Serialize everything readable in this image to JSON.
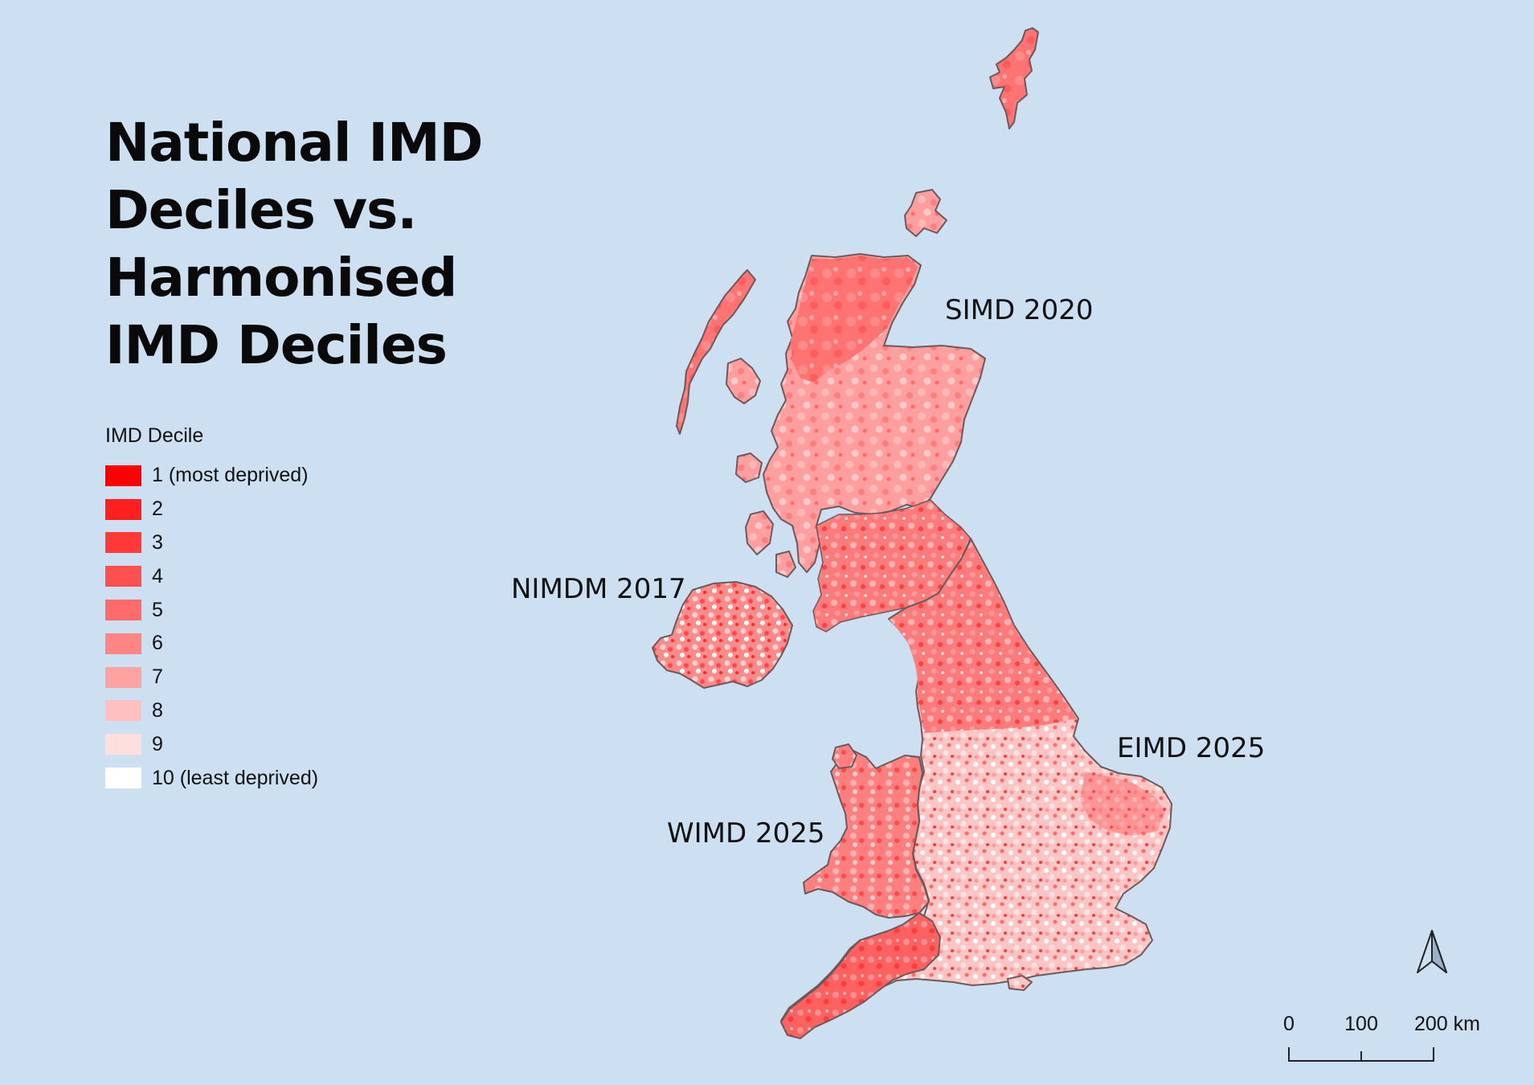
{
  "title_lines": [
    "National IMD",
    "Deciles vs.",
    "Harmonised",
    "IMD Deciles"
  ],
  "legend": {
    "title": "IMD Decile",
    "items": [
      {
        "label": "1 (most deprived)",
        "color": "#ff0000"
      },
      {
        "label": "2",
        "color": "#ff1f1f"
      },
      {
        "label": "3",
        "color": "#ff3838"
      },
      {
        "label": "4",
        "color": "#ff5050"
      },
      {
        "label": "5",
        "color": "#ff6a6a"
      },
      {
        "label": "6",
        "color": "#ff8585"
      },
      {
        "label": "7",
        "color": "#ffa2a2"
      },
      {
        "label": "8",
        "color": "#ffc0c0"
      },
      {
        "label": "9",
        "color": "#ffdede"
      },
      {
        "label": "10 (least deprived)",
        "color": "#ffffff"
      }
    ]
  },
  "regions": {
    "scotland": "SIMD 2020",
    "northern_ireland": "NIMDM 2017",
    "england": "EIMD 2025",
    "wales": "WIMD 2025"
  },
  "scale_bar": {
    "labels": [
      "0",
      "100",
      "200 km"
    ]
  },
  "north_arrow": {
    "icon": "north-arrow-icon"
  },
  "colors": {
    "sea": "#cce0f2",
    "outline": "#6b5a5a"
  }
}
